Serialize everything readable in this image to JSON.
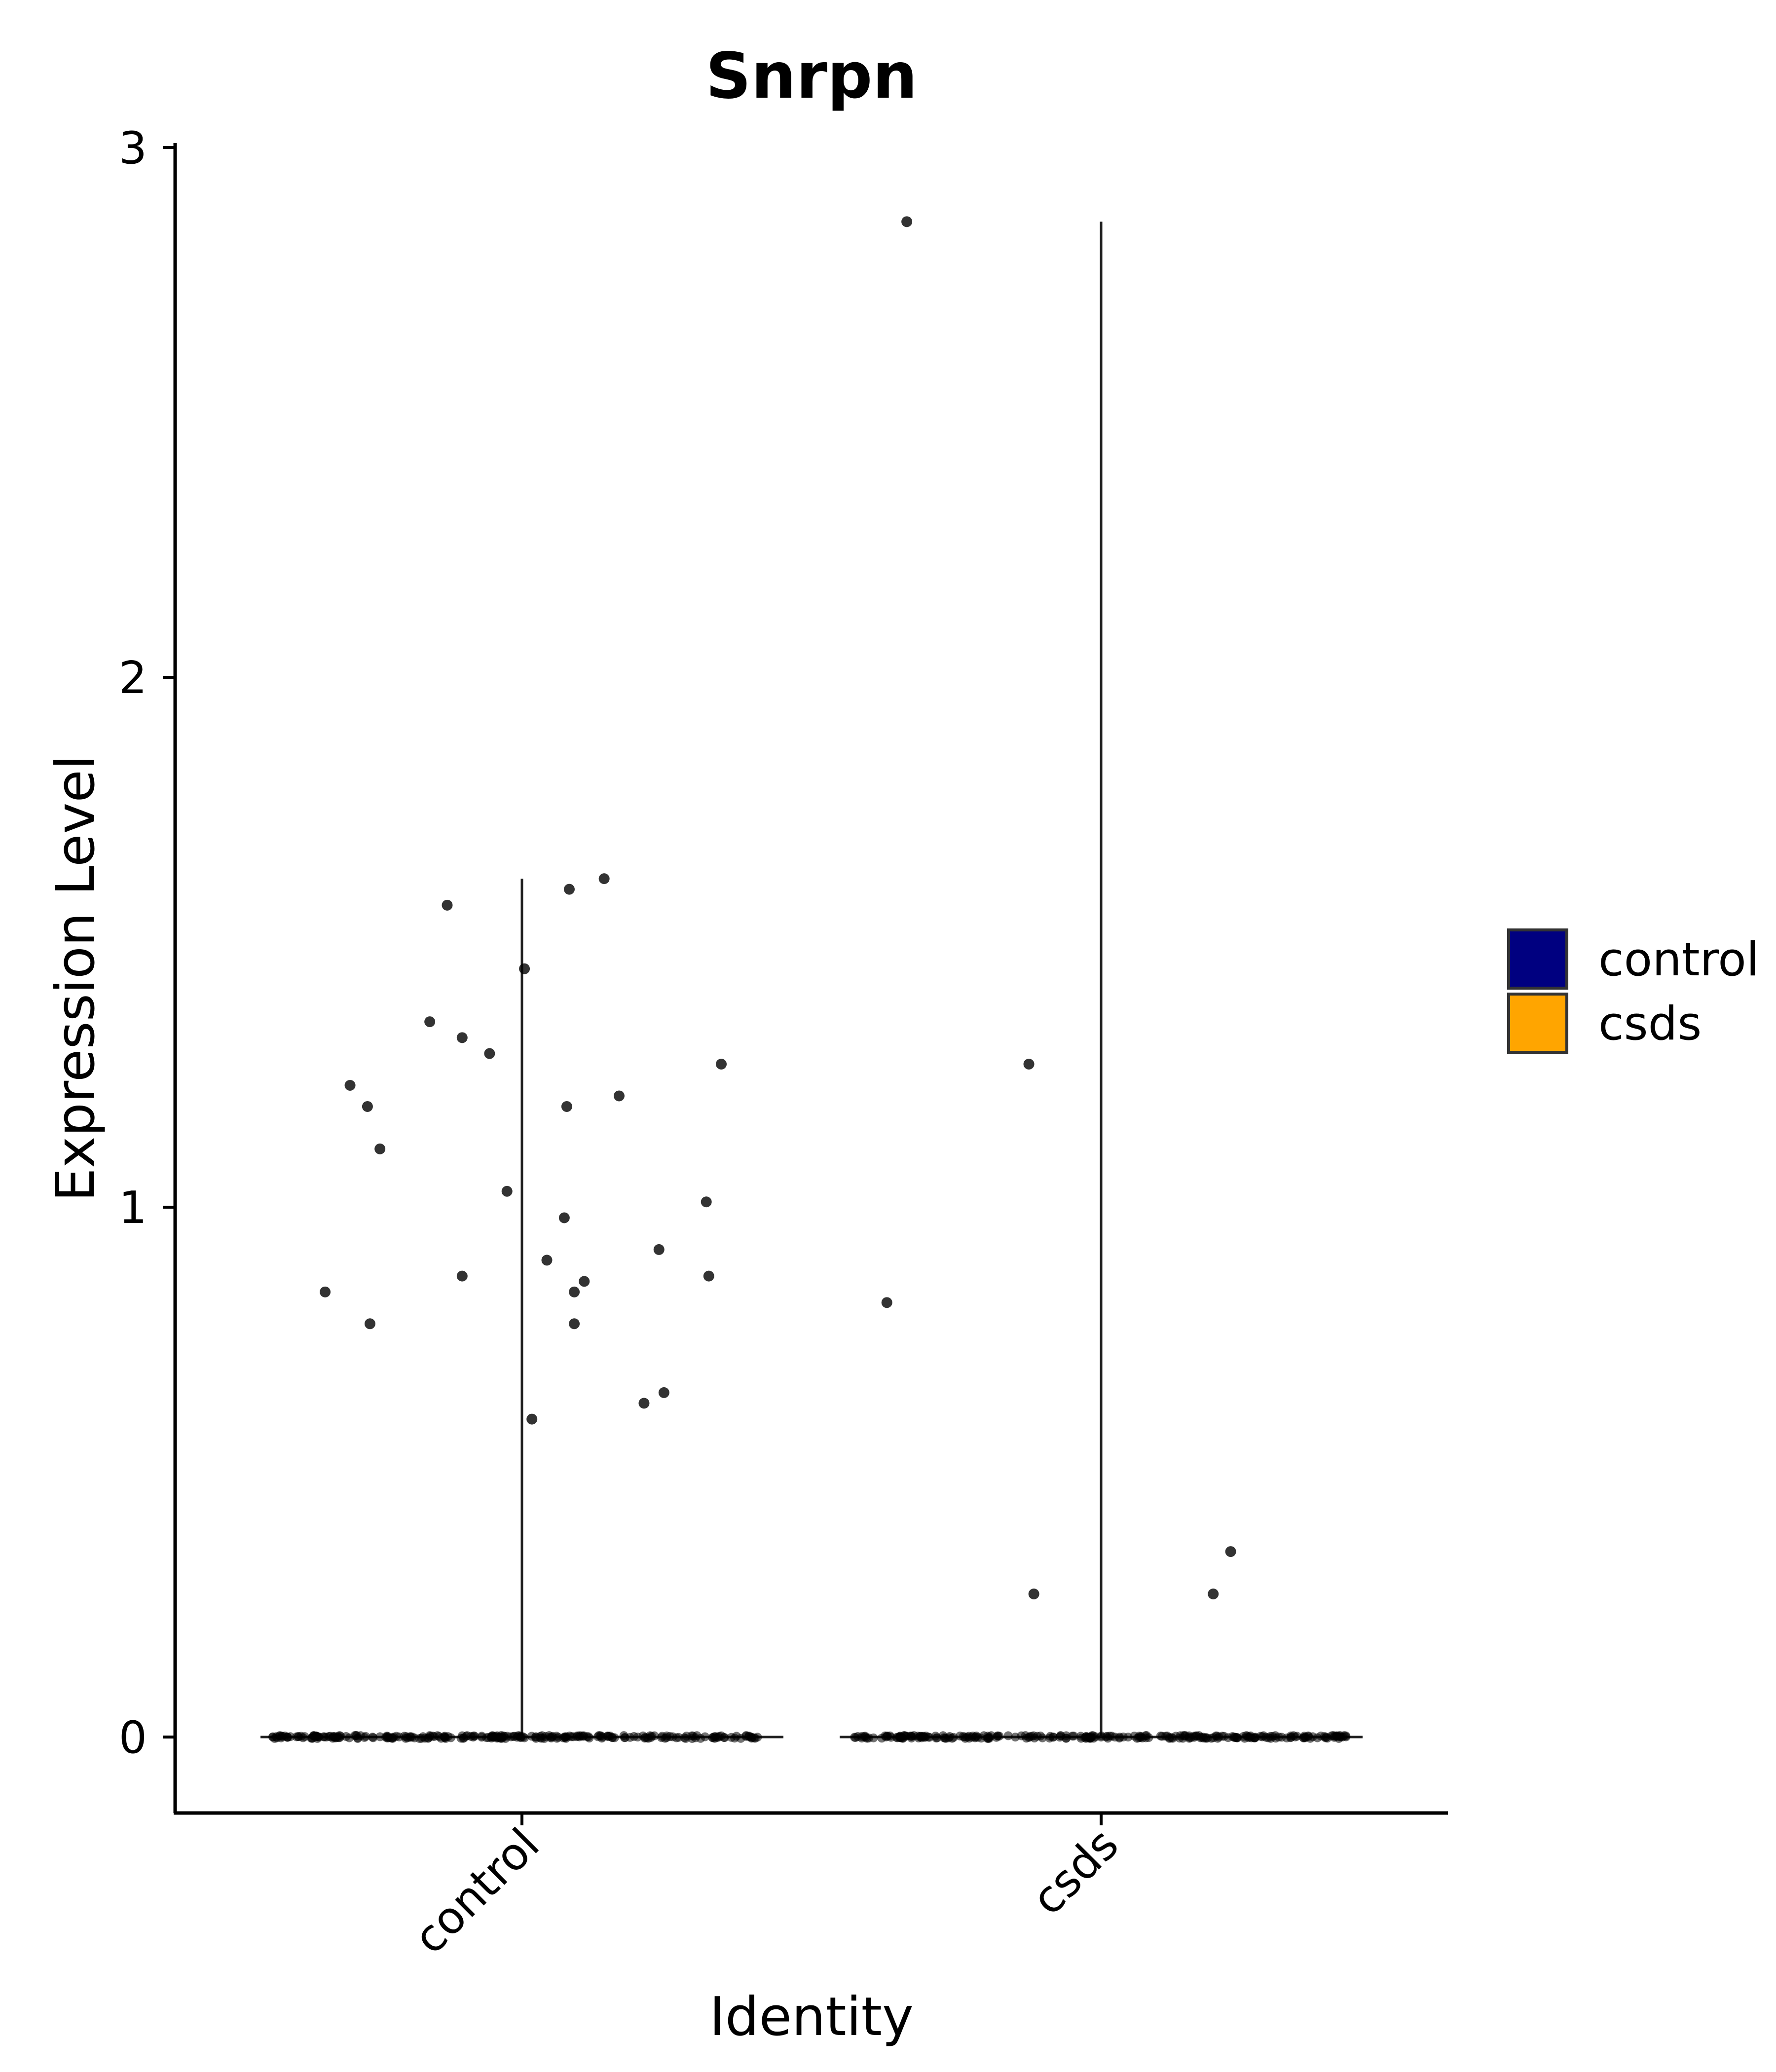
{
  "chart_data": {
    "type": "violin",
    "title": "Snrpn",
    "xlabel": "Identity",
    "ylabel": "Expression Level",
    "categories": [
      "control",
      "csds"
    ],
    "ylim": [
      -0.14,
      3.02
    ],
    "yticks": [
      0,
      1,
      2,
      3
    ],
    "grid": false,
    "legend": {
      "placement": "right",
      "entries": [
        {
          "label": "control",
          "color": "#000080"
        },
        {
          "label": "csds",
          "color": "#FFA500"
        }
      ]
    },
    "violins": [
      {
        "category": "control",
        "max": 1.62
      },
      {
        "category": "csds",
        "max": 2.86
      }
    ],
    "points": {
      "control": [
        {
          "x": -0.79,
          "y": 0.84
        },
        {
          "x": -0.69,
          "y": 1.23
        },
        {
          "x": -0.62,
          "y": 1.19
        },
        {
          "x": -0.61,
          "y": 0.78
        },
        {
          "x": -0.57,
          "y": 1.11
        },
        {
          "x": -0.37,
          "y": 1.35
        },
        {
          "x": -0.3,
          "y": 1.57
        },
        {
          "x": -0.24,
          "y": 1.32
        },
        {
          "x": -0.24,
          "y": 0.87
        },
        {
          "x": -0.13,
          "y": 1.29
        },
        {
          "x": -0.06,
          "y": 1.03
        },
        {
          "x": 0.01,
          "y": 1.45
        },
        {
          "x": 0.04,
          "y": 0.6
        },
        {
          "x": 0.1,
          "y": 0.9
        },
        {
          "x": 0.17,
          "y": 0.98
        },
        {
          "x": 0.18,
          "y": 1.19
        },
        {
          "x": 0.19,
          "y": 1.6
        },
        {
          "x": 0.21,
          "y": 0.84
        },
        {
          "x": 0.21,
          "y": 0.78
        },
        {
          "x": 0.25,
          "y": 0.86
        },
        {
          "x": 0.33,
          "y": 1.62
        },
        {
          "x": 0.39,
          "y": 1.21
        },
        {
          "x": 0.49,
          "y": 0.63
        },
        {
          "x": 0.55,
          "y": 0.92
        },
        {
          "x": 0.57,
          "y": 0.65
        },
        {
          "x": 0.74,
          "y": 1.01
        },
        {
          "x": 0.75,
          "y": 0.87
        },
        {
          "x": 0.8,
          "y": 1.27
        }
      ],
      "csds": [
        {
          "x": -0.78,
          "y": 2.86
        },
        {
          "x": -0.86,
          "y": 0.82
        },
        {
          "x": -0.29,
          "y": 1.27
        },
        {
          "x": -0.27,
          "y": 0.27
        },
        {
          "x": 0.45,
          "y": 0.27
        },
        {
          "x": 0.52,
          "y": 0.35
        }
      ]
    }
  }
}
